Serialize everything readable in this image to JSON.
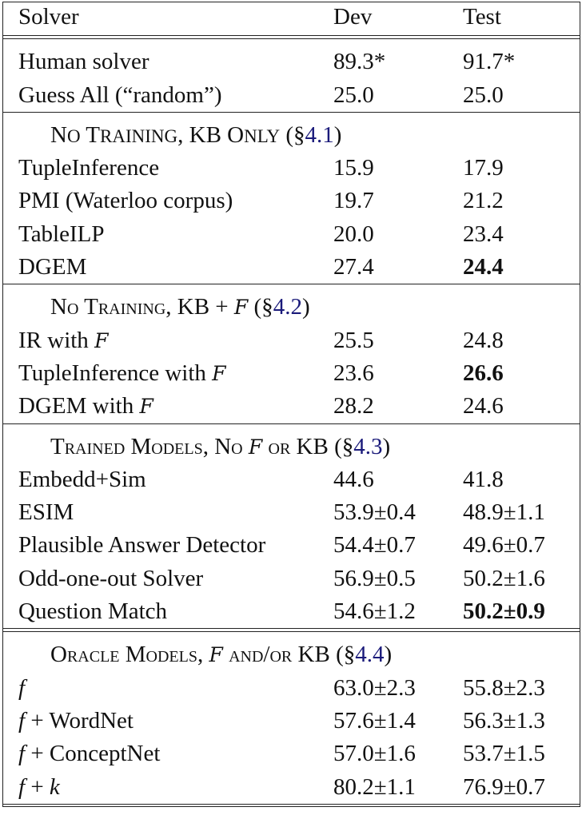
{
  "header": {
    "solver": "Solver",
    "dev": "Dev",
    "test": "Test"
  },
  "sections": [
    {
      "title": null,
      "rows": [
        {
          "solver": "Human solver",
          "dev": "89.3*",
          "test": "91.7*",
          "test_bold": false
        },
        {
          "solver": "Guess All (“random”)",
          "dev": "25.0",
          "test": "25.0",
          "test_bold": false
        }
      ]
    },
    {
      "title": {
        "prefix_a": "N",
        "prefix_a_small": "O",
        "prefix_b": " T",
        "prefix_b_small": "RAINING",
        "mid": ", KB O",
        "mid_small": "NLY",
        "ref_open": " (§",
        "ref": "4.1",
        "ref_close": ")"
      },
      "rows": [
        {
          "solver": "TupleInference",
          "dev": "15.9",
          "test": "17.9",
          "test_bold": false
        },
        {
          "solver": "PMI (Waterloo corpus)",
          "dev": "19.7",
          "test": "21.2",
          "test_bold": false
        },
        {
          "solver": "TableILP",
          "dev": "20.0",
          "test": "23.4",
          "test_bold": false
        },
        {
          "solver": "DGEM",
          "dev": "27.4",
          "test": "24.4",
          "test_bold": true
        }
      ]
    },
    {
      "title": {
        "text": "No Training, KB + ",
        "symbol": "F",
        "ref_open": " (§",
        "ref": "4.2",
        "ref_close": ")"
      },
      "rows": [
        {
          "solver": "IR with ",
          "symbol": "F",
          "dev": "25.5",
          "test": "24.8",
          "test_bold": false
        },
        {
          "solver": "TupleInference with ",
          "symbol": "F",
          "dev": "23.6",
          "test": "26.6",
          "test_bold": true
        },
        {
          "solver": "DGEM with ",
          "symbol": "F",
          "dev": "28.2",
          "test": "24.6",
          "test_bold": false
        }
      ]
    },
    {
      "title": {
        "text_a": "Trained Models, No ",
        "symbol": "F",
        "text_b": " or KB",
        "ref_open": " (§",
        "ref": "4.3",
        "ref_close": ")"
      },
      "rows": [
        {
          "solver": "Embedd+Sim",
          "dev": "44.6",
          "test": "41.8",
          "test_bold": false
        },
        {
          "solver": "ESIM",
          "dev": "53.9±0.4",
          "test": "48.9±1.1",
          "test_bold": false
        },
        {
          "solver": "Plausible Answer Detector",
          "dev": "54.4±0.7",
          "test": "49.6±0.7",
          "test_bold": false
        },
        {
          "solver": "Odd-one-out Solver",
          "dev": "56.9±0.5",
          "test": "50.2±1.6",
          "test_bold": false
        },
        {
          "solver": "Question Match",
          "dev": "54.6±1.2",
          "test": "50.2±0.9",
          "test_bold": true
        }
      ]
    },
    {
      "title": {
        "text_a": "Oracle Models, ",
        "symbol": "F",
        "text_b": " and/or KB",
        "ref_open": " (§",
        "ref": "4.4",
        "ref_close": ")"
      },
      "rows": [
        {
          "solver_italic": "f",
          "solver": "",
          "dev": "63.0±2.3",
          "test": "55.8±2.3",
          "test_bold": false
        },
        {
          "solver_italic": "f",
          "solver": " + WordNet",
          "dev": "57.6±1.4",
          "test": "56.3±1.3",
          "test_bold": false
        },
        {
          "solver_italic": "f",
          "solver": " + ConceptNet",
          "dev": "57.0±1.6",
          "test": "53.7±1.5",
          "test_bold": false
        },
        {
          "solver_italic": "f",
          "solver": " + ",
          "solver_italic_2": "k",
          "dev": "80.2±1.1",
          "test": "76.9±0.7",
          "test_bold": false
        }
      ]
    }
  ]
}
